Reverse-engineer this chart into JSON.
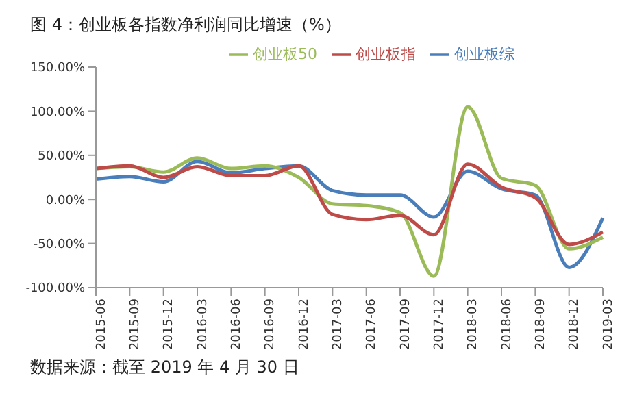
{
  "chart_data": {
    "type": "line",
    "title": "图 4：创业板各指数净利润同比增速（%）",
    "categories": [
      "2015-06",
      "2015-09",
      "2015-12",
      "2016-03",
      "2016-06",
      "2016-09",
      "2016-12",
      "2017-03",
      "2017-06",
      "2017-09",
      "2017-12",
      "2018-03",
      "2018-06",
      "2018-09",
      "2018-12",
      "2019-03"
    ],
    "series": [
      {
        "name": "创业板综",
        "color": "#4a7ebb",
        "values": [
          23,
          26,
          20,
          43,
          30,
          35,
          38,
          10,
          5,
          5,
          -20,
          32,
          12,
          5,
          -77,
          -21
        ]
      },
      {
        "name": "创业板50",
        "color": "#9bbb59",
        "values": [
          35,
          37,
          31,
          47,
          35,
          38,
          25,
          -5,
          -7,
          -15,
          -87,
          105,
          24,
          16,
          -56,
          -43
        ]
      },
      {
        "name": "创业板指",
        "color": "#be4b48",
        "values": [
          35,
          38,
          25,
          37,
          27,
          27,
          38,
          -17,
          -23,
          -18,
          -40,
          40,
          14,
          2,
          -51,
          -37
        ]
      }
    ],
    "ylim": [
      -100,
      150
    ],
    "yticks": [
      {
        "value": -100,
        "label": "-100.00%"
      },
      {
        "value": -50,
        "label": "-50.00%"
      },
      {
        "value": 0,
        "label": "0.00%"
      },
      {
        "value": 50,
        "label": "50.00%"
      },
      {
        "value": 100,
        "label": "100.00%"
      },
      {
        "value": 150,
        "label": "150.00%"
      }
    ],
    "grid": false,
    "legend": "top",
    "marker": "none",
    "line_style": "solid",
    "annotations": [
      "数据来源：截至 2019 年 4 月 30 日"
    ]
  }
}
